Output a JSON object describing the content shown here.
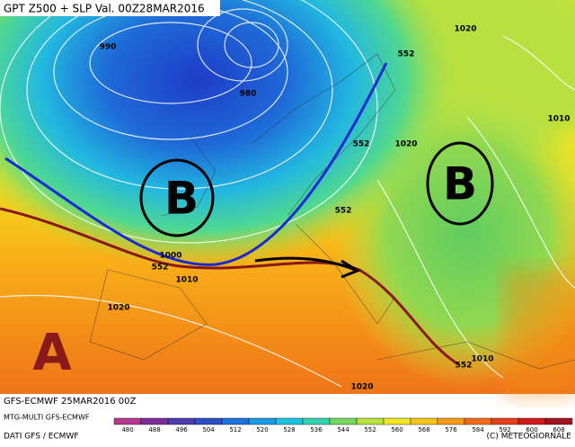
{
  "header": {
    "title": "GPT Z500 + SLP Val. 00Z28MAR2016"
  },
  "map": {
    "contour_labels": [
      "990",
      "980",
      "1020",
      "552",
      "552",
      "1020",
      "1010",
      "552",
      "1000",
      "552",
      "1010",
      "1020",
      "552",
      "1010",
      "1020"
    ],
    "lows": [
      "B",
      "B"
    ],
    "high": "A",
    "run": "GFS-ECMWF 25MAR2016 00Z"
  },
  "colorbar": {
    "ticks": [
      480,
      488,
      496,
      504,
      512,
      520,
      528,
      536,
      544,
      552,
      560,
      568,
      576,
      584,
      592,
      600,
      608
    ],
    "colors": [
      "#b2398f",
      "#7d2e9c",
      "#4c3daa",
      "#2c4fc4",
      "#1e72da",
      "#1a9be2",
      "#1cc2e2",
      "#34d3b0",
      "#74d860",
      "#b8e23c",
      "#f0e624",
      "#f7c61c",
      "#f79a1a",
      "#ef6a1a",
      "#e6401a",
      "#d01c1a",
      "#a01420"
    ]
  },
  "footer": {
    "model": "MTG-MULTI GFS-ECMWF",
    "source": "DATI GFS / ECMWF",
    "copyright": "(C) METEOGIORNALE"
  }
}
